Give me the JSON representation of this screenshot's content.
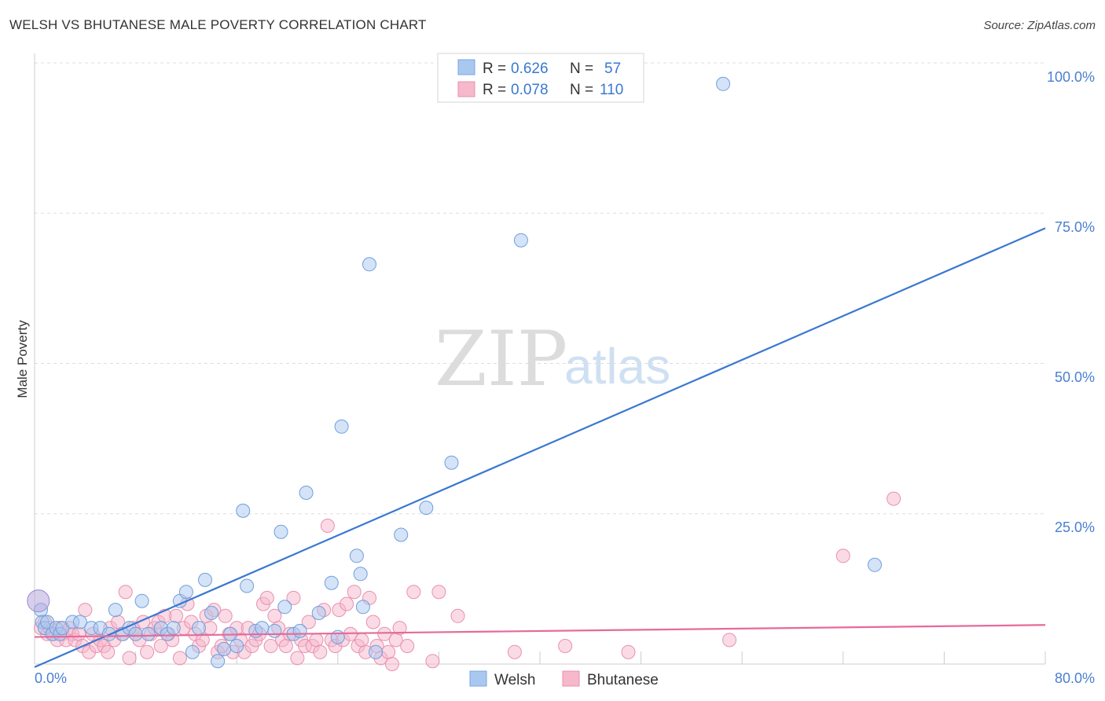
{
  "header": {
    "title": "WELSH VS BHUTANESE MALE POVERTY CORRELATION CHART",
    "source": "Source: ZipAtlas.com"
  },
  "watermark": {
    "zip": "ZIP",
    "atlas": "atlas"
  },
  "legend": {
    "r_label": "R =",
    "n_label": "N =",
    "items": [
      {
        "r": "0.626",
        "n": "57",
        "color": "#a9c8f0"
      },
      {
        "r": "0.078",
        "n": "110",
        "color": "#f6b8cb"
      }
    ]
  },
  "chart_data": {
    "type": "scatter",
    "ylabel": "Male Poverty",
    "x_ticks": [
      "0.0%",
      "80.0%"
    ],
    "y_ticks": [
      "25.0%",
      "50.0%",
      "75.0%",
      "100.0%"
    ],
    "xlim": [
      0,
      80
    ],
    "ylim": [
      0,
      100
    ],
    "grid": true,
    "legend_position": "top-center",
    "colors": {
      "Welsh": "#3a78d0",
      "Bhutanese": "#e56a9a"
    },
    "series": [
      {
        "name": "Welsh",
        "r": 0.626,
        "n": 57,
        "trend": {
          "x": [
            0,
            80
          ],
          "y": [
            -0.5,
            72.5
          ]
        },
        "points": [
          [
            0.5,
            9
          ],
          [
            0.6,
            7
          ],
          [
            0.8,
            6
          ],
          [
            1.0,
            7
          ],
          [
            1.4,
            5
          ],
          [
            1.7,
            6
          ],
          [
            2.0,
            5
          ],
          [
            2.2,
            6
          ],
          [
            3.0,
            7
          ],
          [
            3.6,
            7
          ],
          [
            4.5,
            6
          ],
          [
            5.2,
            6
          ],
          [
            5.9,
            5
          ],
          [
            6.4,
            9
          ],
          [
            7.0,
            5
          ],
          [
            7.5,
            6
          ],
          [
            8.0,
            5
          ],
          [
            8.5,
            10.5
          ],
          [
            9.0,
            5
          ],
          [
            10.0,
            6
          ],
          [
            10.5,
            5
          ],
          [
            11.0,
            6
          ],
          [
            11.5,
            10.5
          ],
          [
            12.0,
            12
          ],
          [
            12.5,
            2
          ],
          [
            13.0,
            6
          ],
          [
            13.5,
            14
          ],
          [
            14.0,
            8.5
          ],
          [
            14.5,
            0.5
          ],
          [
            15.0,
            2.5
          ],
          [
            15.5,
            5
          ],
          [
            16.0,
            3
          ],
          [
            16.5,
            25.5
          ],
          [
            16.8,
            13
          ],
          [
            17.5,
            5.5
          ],
          [
            18.0,
            6
          ],
          [
            19.0,
            5.5
          ],
          [
            19.5,
            22
          ],
          [
            19.8,
            9.5
          ],
          [
            20.5,
            5
          ],
          [
            21.0,
            5.5
          ],
          [
            21.5,
            28.5
          ],
          [
            22.5,
            8.5
          ],
          [
            23.5,
            13.5
          ],
          [
            24.0,
            4.5
          ],
          [
            24.3,
            39.5
          ],
          [
            25.5,
            18
          ],
          [
            25.8,
            15
          ],
          [
            26.0,
            9.5
          ],
          [
            26.5,
            66.5
          ],
          [
            27.0,
            2
          ],
          [
            29.0,
            21.5
          ],
          [
            31.0,
            26
          ],
          [
            33.0,
            33.5
          ],
          [
            38.5,
            70.5
          ],
          [
            54.5,
            96.5
          ],
          [
            66.5,
            16.5
          ]
        ]
      },
      {
        "name": "Bhutanese",
        "r": 0.078,
        "n": 110,
        "trend": {
          "x": [
            0,
            80
          ],
          "y": [
            4.5,
            6.5
          ]
        },
        "points": [
          [
            0.5,
            6
          ],
          [
            0.8,
            7
          ],
          [
            1.0,
            5
          ],
          [
            1.2,
            6
          ],
          [
            1.5,
            5
          ],
          [
            1.8,
            4
          ],
          [
            2.0,
            6
          ],
          [
            2.2,
            5
          ],
          [
            2.5,
            4
          ],
          [
            2.8,
            6
          ],
          [
            3.0,
            5
          ],
          [
            3.2,
            4
          ],
          [
            3.5,
            5
          ],
          [
            3.8,
            3
          ],
          [
            4.0,
            9
          ],
          [
            4.3,
            2
          ],
          [
            4.6,
            5
          ],
          [
            4.9,
            3
          ],
          [
            5.2,
            4
          ],
          [
            5.5,
            3
          ],
          [
            5.8,
            2
          ],
          [
            6.0,
            6
          ],
          [
            6.3,
            4
          ],
          [
            6.6,
            7
          ],
          [
            6.9,
            5
          ],
          [
            7.2,
            12
          ],
          [
            7.5,
            1
          ],
          [
            7.8,
            6
          ],
          [
            8.0,
            5
          ],
          [
            8.3,
            4
          ],
          [
            8.6,
            7
          ],
          [
            8.9,
            2
          ],
          [
            9.2,
            5
          ],
          [
            9.5,
            6
          ],
          [
            9.8,
            7
          ],
          [
            10.0,
            3
          ],
          [
            10.3,
            8
          ],
          [
            10.6,
            5
          ],
          [
            10.9,
            4
          ],
          [
            11.2,
            8
          ],
          [
            11.5,
            1
          ],
          [
            11.8,
            6
          ],
          [
            12.1,
            10
          ],
          [
            12.4,
            7
          ],
          [
            12.7,
            5
          ],
          [
            13.0,
            3
          ],
          [
            13.3,
            4
          ],
          [
            13.6,
            8
          ],
          [
            13.9,
            6
          ],
          [
            14.2,
            9
          ],
          [
            14.5,
            2
          ],
          [
            14.8,
            3
          ],
          [
            15.1,
            8
          ],
          [
            15.4,
            5
          ],
          [
            15.7,
            2
          ],
          [
            16.0,
            6
          ],
          [
            16.3,
            4
          ],
          [
            16.6,
            2
          ],
          [
            16.9,
            6
          ],
          [
            17.2,
            3
          ],
          [
            17.5,
            4
          ],
          [
            17.8,
            5
          ],
          [
            18.1,
            10
          ],
          [
            18.4,
            11
          ],
          [
            18.7,
            3
          ],
          [
            19.0,
            8
          ],
          [
            19.3,
            6
          ],
          [
            19.6,
            4
          ],
          [
            19.9,
            3
          ],
          [
            20.2,
            5
          ],
          [
            20.5,
            11
          ],
          [
            20.8,
            1
          ],
          [
            21.1,
            4
          ],
          [
            21.4,
            3
          ],
          [
            21.7,
            7
          ],
          [
            22.0,
            3
          ],
          [
            22.3,
            4
          ],
          [
            22.6,
            2
          ],
          [
            22.9,
            9
          ],
          [
            23.2,
            23
          ],
          [
            23.5,
            4
          ],
          [
            23.8,
            3
          ],
          [
            24.1,
            9
          ],
          [
            24.4,
            4
          ],
          [
            24.7,
            10
          ],
          [
            25.0,
            5
          ],
          [
            25.3,
            12
          ],
          [
            25.6,
            3
          ],
          [
            25.9,
            4
          ],
          [
            26.2,
            2
          ],
          [
            26.5,
            11
          ],
          [
            26.8,
            7
          ],
          [
            27.1,
            3
          ],
          [
            27.4,
            1
          ],
          [
            27.7,
            5
          ],
          [
            28.0,
            2
          ],
          [
            28.3,
            0
          ],
          [
            28.6,
            4
          ],
          [
            28.9,
            6
          ],
          [
            29.5,
            3
          ],
          [
            30.0,
            12
          ],
          [
            31.5,
            0.5
          ],
          [
            32.0,
            12
          ],
          [
            33.5,
            8
          ],
          [
            38.0,
            2
          ],
          [
            42.0,
            3
          ],
          [
            47.0,
            2
          ],
          [
            55.0,
            4
          ],
          [
            64.0,
            18
          ],
          [
            68.0,
            27.5
          ]
        ]
      }
    ]
  },
  "bottom_legend": [
    {
      "label": "Welsh",
      "color": "#a9c8f0"
    },
    {
      "label": "Bhutanese",
      "color": "#f6b8cb"
    }
  ]
}
